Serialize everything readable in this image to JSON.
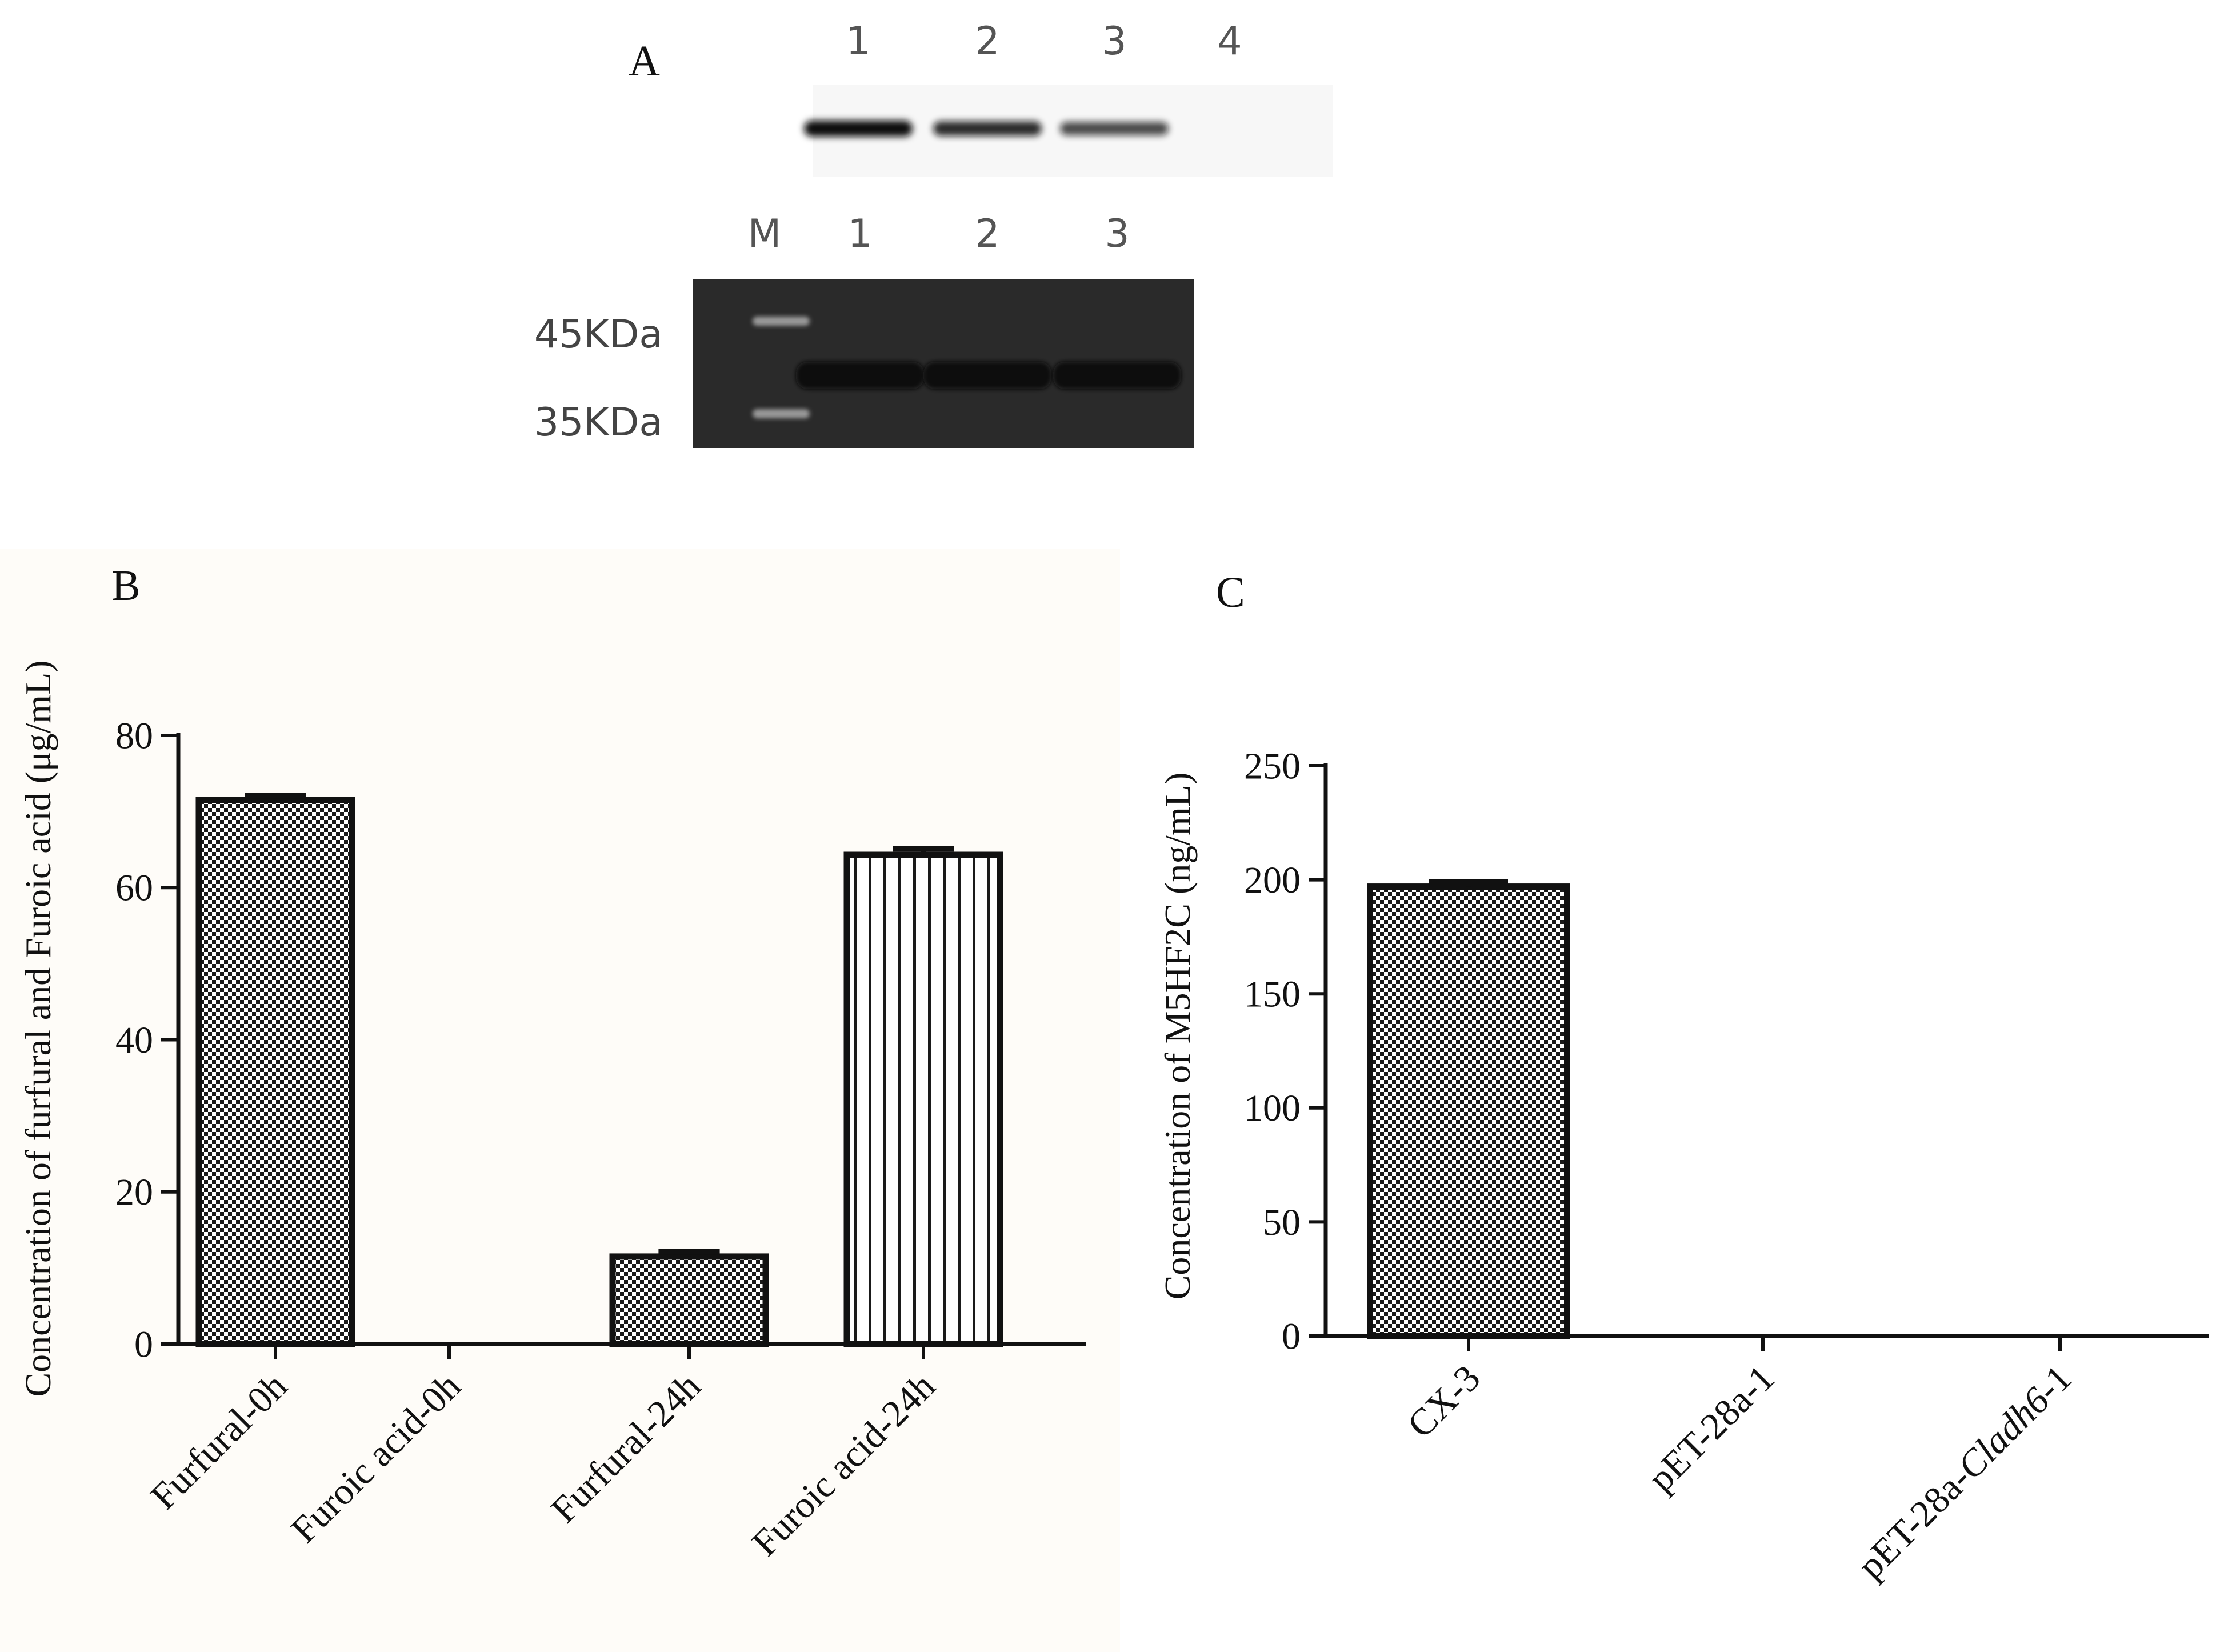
{
  "panel_labels": {
    "a": "A",
    "b": "B",
    "c": "C"
  },
  "blot": {
    "lanes": [
      "1",
      "2",
      "3",
      "4"
    ],
    "gel_lanes": [
      "M",
      "1",
      "2",
      "3"
    ],
    "markers": [
      "45KDa",
      "35KDa"
    ],
    "western_band_intensity": [
      1.0,
      0.8,
      0.6,
      0.0
    ],
    "gel_band_intensity": [
      1.0,
      1.0,
      1.0
    ]
  },
  "chart_data": [
    {
      "type": "bar",
      "title": "",
      "xlabel": "",
      "ylabel": "Concentration of furfural and Furoic acid (μg/mL)",
      "categories": [
        "Furfural-0h",
        "Furoic acid-0h",
        "Furfural-24h",
        "Furoic acid-24h"
      ],
      "values": [
        71.5,
        0,
        11.5,
        64.3
      ],
      "errors": [
        0.6,
        0,
        0.6,
        0.8
      ],
      "patterns": [
        "checker",
        "checker",
        "checker",
        "vertical-lines"
      ],
      "ylim": [
        0,
        80
      ],
      "yticks": [
        "0",
        "20",
        "40",
        "60",
        "80"
      ],
      "grid": false,
      "legend": "none"
    },
    {
      "type": "bar",
      "title": "",
      "xlabel": "",
      "ylabel": "Concentration of M5HF2C (ng/mL)",
      "categories": [
        "CX-3",
        "pET-28a-1",
        "pET-28a-Cladh6-1"
      ],
      "category_parts": [
        [
          {
            "t": "CX-3",
            "i": false
          }
        ],
        [
          {
            "t": "pET-28a-1",
            "i": false
          }
        ],
        [
          {
            "t": "pET-28a-",
            "i": false
          },
          {
            "t": "Cladh6",
            "i": true
          },
          {
            "t": "-1",
            "i": false
          }
        ]
      ],
      "values": [
        197,
        0,
        0
      ],
      "errors": [
        2,
        0,
        0
      ],
      "patterns": [
        "checker",
        "checker",
        "checker"
      ],
      "ylim": [
        0,
        250
      ],
      "yticks": [
        "0",
        "50",
        "100",
        "150",
        "200",
        "250"
      ],
      "grid": false,
      "legend": "none"
    }
  ]
}
